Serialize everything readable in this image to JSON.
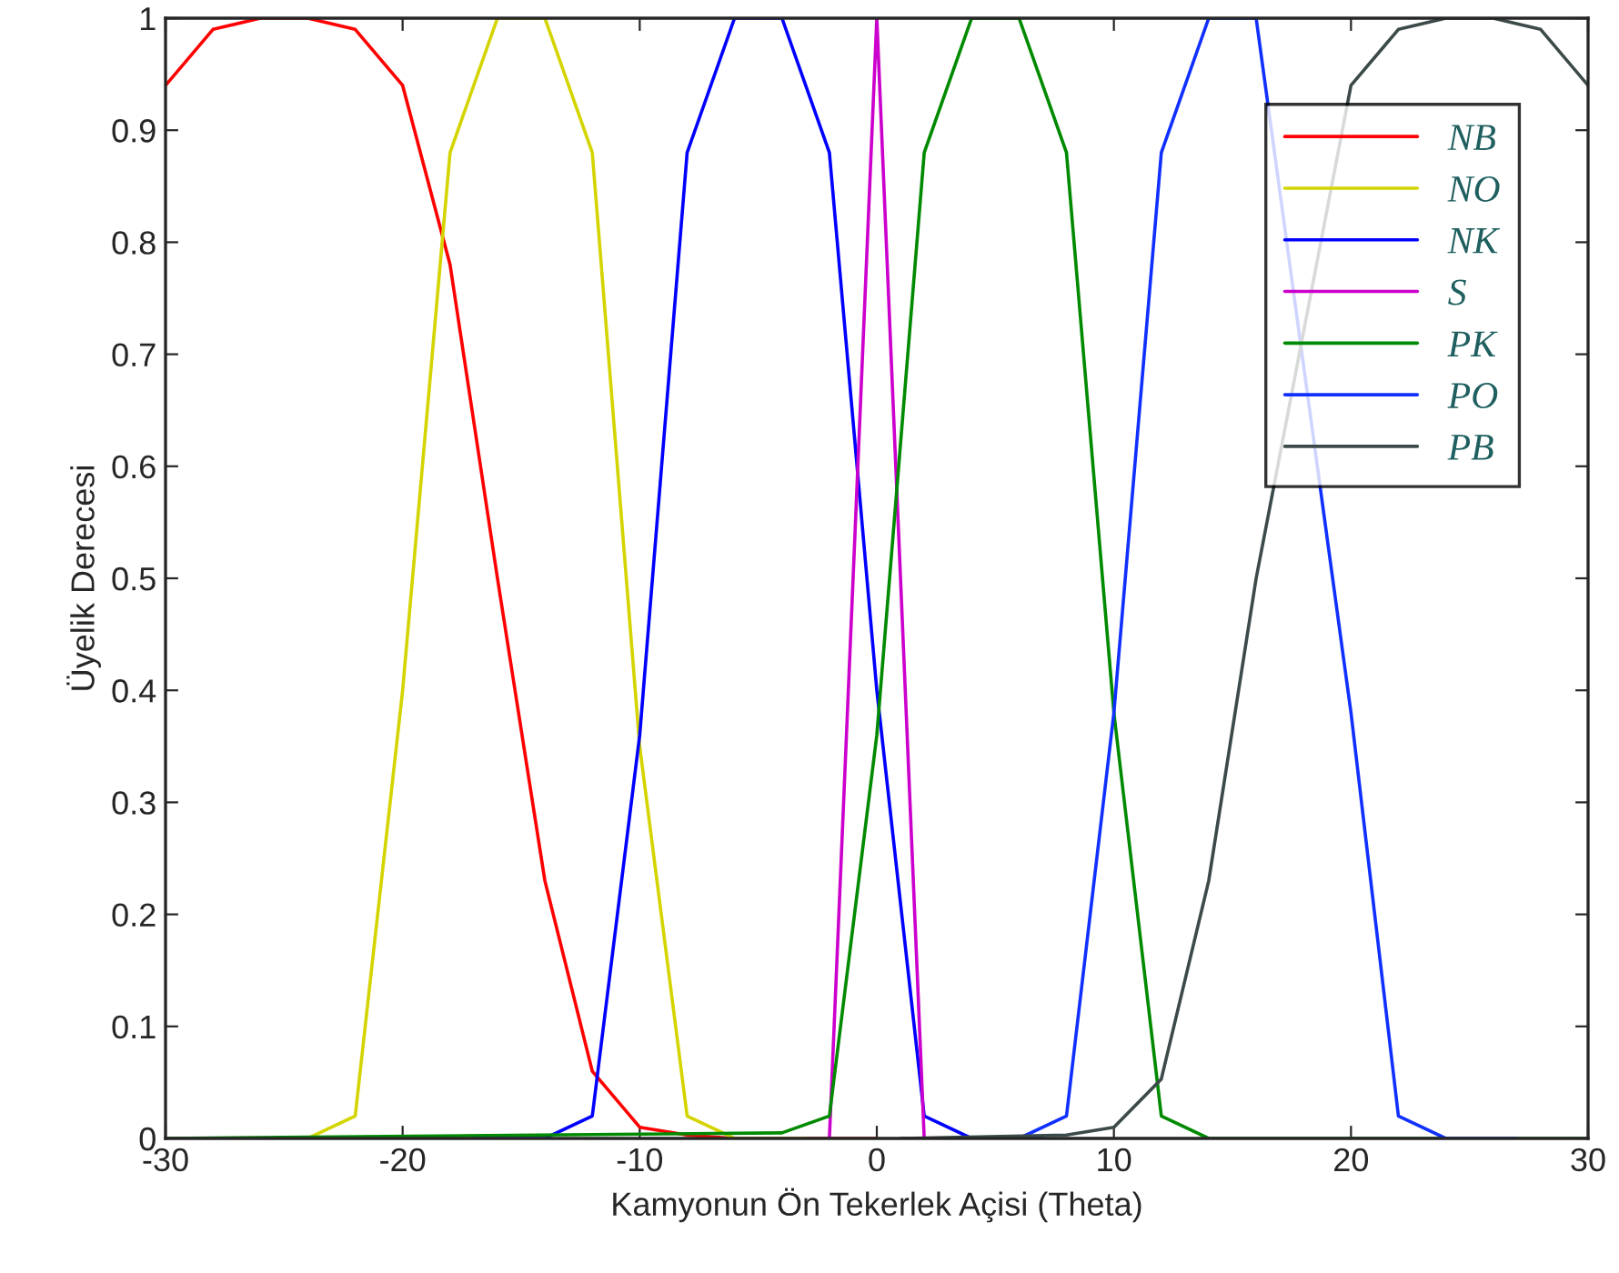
{
  "chart_data": {
    "type": "line",
    "xlabel": "Kamyonun Ön Tekerlek Açisi (Theta)",
    "ylabel": "Üyelik Derecesi",
    "xlim": [
      -30,
      30
    ],
    "xticks": [
      -30,
      -20,
      -10,
      0,
      10,
      20,
      30
    ],
    "ylim": [
      0,
      1
    ],
    "yticks": [
      0,
      0.1,
      0.2,
      0.3,
      0.4,
      0.5,
      0.6,
      0.7,
      0.8,
      0.9,
      1
    ],
    "grid": false,
    "legend": "top right",
    "marker": "none",
    "line_style": "solid",
    "series": [
      {
        "name": "NB",
        "color": "#ff0000",
        "x": [
          -30,
          -28,
          -26,
          -24,
          -22,
          -20,
          -18,
          -16,
          -14,
          -12,
          -10,
          -8,
          -6,
          0
        ],
        "values": [
          0.94,
          0.99,
          1,
          1,
          0.99,
          0.94,
          0.78,
          0.5,
          0.23,
          0.06,
          0.01,
          0.003,
          0,
          0
        ]
      },
      {
        "name": "NO",
        "color": "#d4d400",
        "x": [
          -27,
          -24,
          -22,
          -20,
          -18,
          -16,
          -14,
          -12,
          -10,
          -8,
          -6,
          -3
        ],
        "values": [
          0,
          0,
          0.02,
          0.4,
          0.88,
          1,
          1,
          0.88,
          0.35,
          0.02,
          0,
          0
        ]
      },
      {
        "name": "NK",
        "color": "#0000ff",
        "x": [
          -17,
          -14,
          -12,
          -10,
          -8,
          -6,
          -4,
          -2,
          0,
          2,
          4,
          7
        ],
        "values": [
          0,
          0,
          0.02,
          0.36,
          0.88,
          1,
          1,
          0.88,
          0.4,
          0.02,
          0,
          0
        ]
      },
      {
        "name": "S",
        "color": "#cc00cc",
        "x": [
          -2,
          0,
          2
        ],
        "values": [
          0,
          1,
          0
        ]
      },
      {
        "name": "PK",
        "color": "#008a00",
        "x": [
          -30,
          -4,
          -2,
          0,
          2,
          4,
          6,
          8,
          10,
          12,
          14,
          30
        ],
        "values": [
          0,
          0.005,
          0.02,
          0.36,
          0.88,
          1,
          1,
          0.88,
          0.38,
          0.02,
          0,
          0
        ]
      },
      {
        "name": "PO",
        "color": "#1030ff",
        "x": [
          3,
          6,
          8,
          10,
          12,
          14,
          16,
          18,
          20,
          22,
          24,
          27
        ],
        "values": [
          0,
          0,
          0.02,
          0.38,
          0.88,
          1,
          1,
          null,
          0.38,
          0.02,
          0,
          0
        ]
      },
      {
        "name": "PB",
        "color": "#3c4a4a",
        "x": [
          1,
          8,
          10,
          12,
          14,
          16,
          18,
          20,
          22,
          24,
          26,
          28,
          30
        ],
        "values": [
          0,
          0.003,
          0.01,
          0.053,
          0.23,
          0.5,
          null,
          0.94,
          0.99,
          1,
          1,
          0.99,
          0.94
        ]
      }
    ]
  }
}
